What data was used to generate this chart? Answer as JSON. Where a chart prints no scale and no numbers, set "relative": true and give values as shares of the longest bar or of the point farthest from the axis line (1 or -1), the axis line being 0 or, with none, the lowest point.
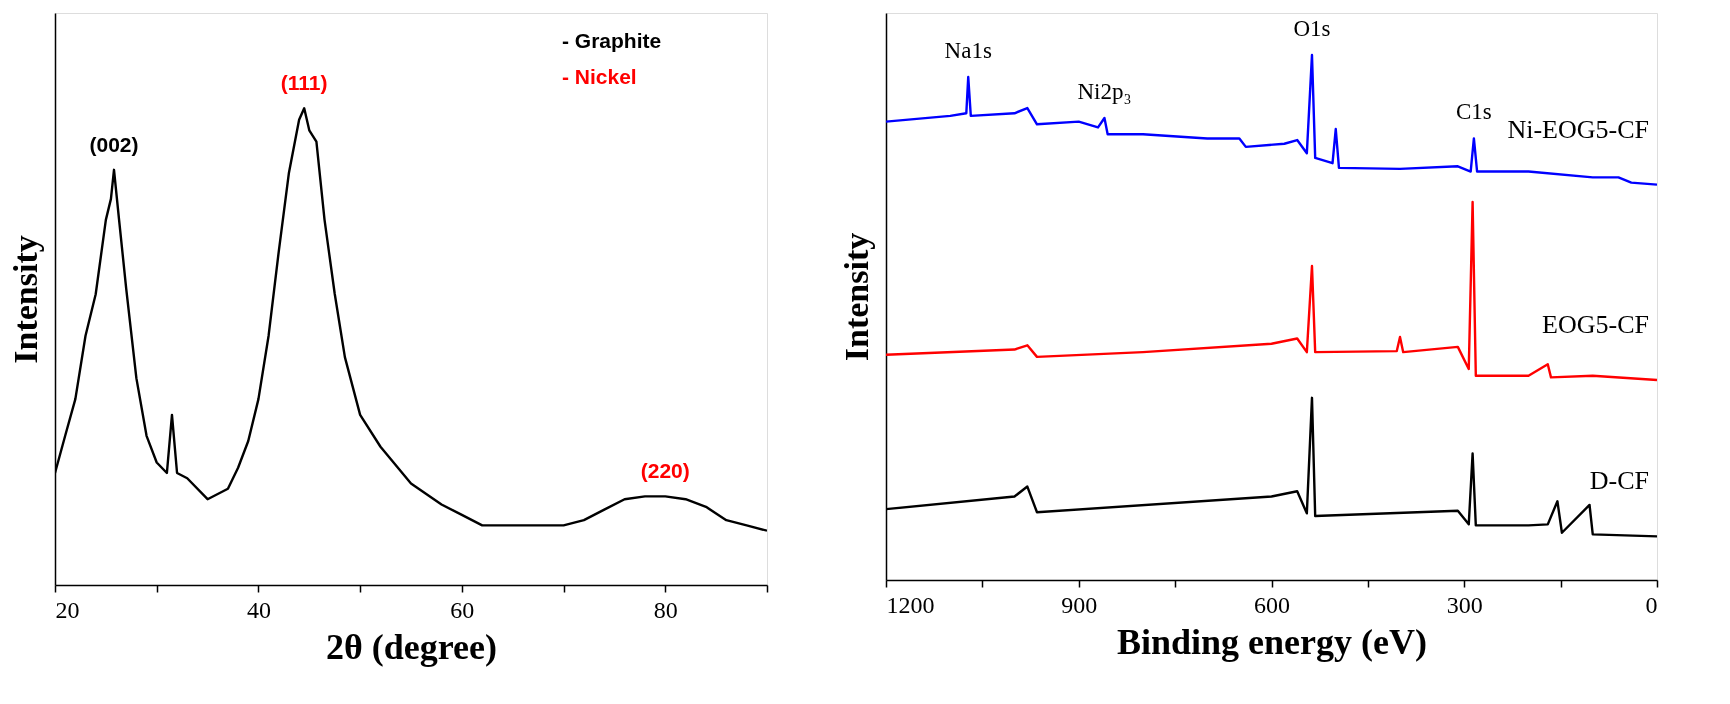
{
  "chart_data": [
    {
      "type": "line",
      "relative": true,
      "xlabel": "2θ (degree)",
      "ylabel": "Intensity",
      "xlim": [
        20,
        90
      ],
      "xticks": [
        20,
        {
          "value": 30,
          "label": null
        },
        40,
        {
          "value": 50,
          "label": null
        },
        60,
        {
          "value": 70,
          "label": null
        },
        80,
        {
          "value": 90,
          "label": null
        }
      ],
      "grid": false,
      "annotations": [
        {
          "text": "(002)",
          "x": 25.8,
          "y": 0.871
        },
        {
          "text": "(111)",
          "x": 44.5,
          "y": 1
        },
        {
          "text": "(220)",
          "x": 80,
          "y": 0.186
        },
        "- Graphite",
        "- Nickel"
      ],
      "series": [
        {
          "color": "#000000",
          "x": [
            20,
            21,
            22,
            23,
            24,
            25,
            25.5,
            25.8,
            26.3,
            27,
            28,
            29,
            30,
            31,
            31.5,
            32,
            33,
            35,
            37,
            38,
            39,
            40,
            41,
            42,
            43,
            44,
            44.5,
            45,
            45.7,
            46.5,
            47.5,
            48.5,
            50,
            52,
            55,
            58,
            60,
            62,
            65,
            68,
            70,
            72,
            74,
            76,
            78,
            80,
            82,
            84,
            86,
            88,
            90
          ],
          "values": [
            0.235,
            0.313,
            0.39,
            0.523,
            0.61,
            0.766,
            0.81,
            0.871,
            0.766,
            0.622,
            0.434,
            0.313,
            0.257,
            0.235,
            0.357,
            0.235,
            0.224,
            0.18,
            0.202,
            0.246,
            0.302,
            0.39,
            0.523,
            0.7,
            0.865,
            0.976,
            1,
            0.954,
            0.93,
            0.766,
            0.611,
            0.478,
            0.357,
            0.29,
            0.213,
            0.169,
            0.147,
            0.125,
            0.125,
            0.125,
            0.125,
            0.136,
            0.158,
            0.18,
            0.186,
            0.186,
            0.18,
            0.164,
            0.136,
            0.125,
            0.114
          ]
        }
      ]
    },
    {
      "type": "line",
      "relative": true,
      "xlabel": "Binding energy (eV)",
      "ylabel": "Intensity",
      "xlim": [
        1200,
        0
      ],
      "xticks": [
        1200,
        {
          "value": 1050,
          "label": null
        },
        900,
        {
          "value": 750,
          "label": null
        },
        600,
        {
          "value": 450,
          "label": null
        },
        300,
        {
          "value": 150,
          "label": null
        },
        0
      ],
      "grid": false,
      "annotations": [
        {
          "text": "Na1s",
          "x": 1072,
          "y": 0.958
        },
        {
          "text": "Ni2p₃",
          "x": 860,
          "y": 0.88
        },
        {
          "text": "O1s",
          "x": 537,
          "y": 1
        },
        {
          "text": "C1s",
          "x": 285,
          "y": 0.841
        }
      ],
      "series": [
        {
          "name": "Ni-EOG5-CF",
          "color": "#0000ff",
          "x": [
            1200,
            1100,
            1075,
            1072,
            1068,
            1000,
            980,
            965,
            900,
            870,
            860,
            855,
            800,
            700,
            650,
            640,
            580,
            560,
            545,
            537,
            532,
            505,
            500,
            495,
            400,
            310,
            290,
            285,
            280,
            200,
            100,
            60,
            40,
            0
          ],
          "values": [
            0.873,
            0.884,
            0.889,
            0.958,
            0.884,
            0.889,
            0.899,
            0.868,
            0.873,
            0.862,
            0.88,
            0.849,
            0.849,
            0.841,
            0.841,
            0.825,
            0.831,
            0.838,
            0.813,
            1,
            0.804,
            0.794,
            0.859,
            0.785,
            0.783,
            0.788,
            0.778,
            0.841,
            0.778,
            0.778,
            0.767,
            0.767,
            0.757,
            0.753
          ]
        },
        {
          "name": "EOG5-CF",
          "color": "#ff0000",
          "x": [
            1200,
            1000,
            980,
            965,
            800,
            600,
            560,
            545,
            537,
            532,
            405,
            400,
            395,
            310,
            293,
            287,
            282,
            200,
            170,
            165,
            100,
            0
          ],
          "values": [
            0.429,
            0.439,
            0.447,
            0.425,
            0.434,
            0.45,
            0.46,
            0.434,
            0.598,
            0.434,
            0.436,
            0.463,
            0.434,
            0.444,
            0.402,
            0.72,
            0.389,
            0.389,
            0.411,
            0.386,
            0.389,
            0.381
          ]
        },
        {
          "name": "D-CF",
          "color": "#000000",
          "x": [
            1200,
            1000,
            980,
            965,
            600,
            560,
            545,
            537,
            532,
            310,
            293,
            287,
            282,
            200,
            170,
            155,
            148,
            105,
            100,
            0
          ],
          "values": [
            0.135,
            0.159,
            0.178,
            0.129,
            0.159,
            0.169,
            0.127,
            0.347,
            0.122,
            0.132,
            0.106,
            0.241,
            0.104,
            0.104,
            0.106,
            0.15,
            0.09,
            0.143,
            0.087,
            0.083
          ]
        }
      ]
    }
  ]
}
